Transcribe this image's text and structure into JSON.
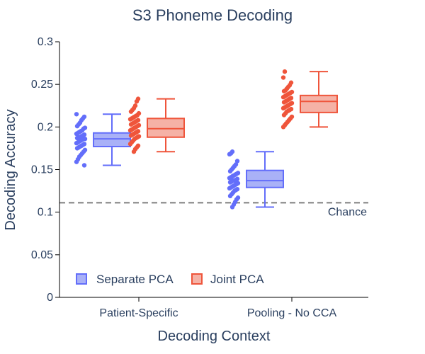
{
  "chart_data": {
    "type": "box",
    "title": "S3 Phoneme Decoding",
    "xlabel": "Decoding Context",
    "ylabel": "Decoding Accuracy",
    "ylim": [
      0,
      0.3
    ],
    "yticks": [
      0,
      0.05,
      0.1,
      0.15,
      0.2,
      0.25,
      0.3
    ],
    "ytick_labels": [
      "0",
      "0.05",
      "0.1",
      "0.15",
      "0.2",
      "0.25",
      "0.3"
    ],
    "categories": [
      "Patient-Specific",
      "Pooling - No CCA"
    ],
    "chance_level": 0.111,
    "chance_label": "Chance",
    "legend_position": "bottom-left",
    "series": [
      {
        "name": "Separate PCA",
        "fill": "#a9b1f7",
        "line": "#636efa",
        "point": "#636efa",
        "boxes": [
          {
            "category": "Patient-Specific",
            "min": 0.155,
            "q1": 0.177,
            "median": 0.186,
            "q3": 0.193,
            "max": 0.215
          },
          {
            "category": "Pooling - No CCA",
            "min": 0.106,
            "q1": 0.129,
            "median": 0.137,
            "q3": 0.149,
            "max": 0.171
          }
        ],
        "points": [
          [
            0.215,
            0.212,
            0.21,
            0.208,
            0.205,
            0.203,
            0.201,
            0.199,
            0.198,
            0.196,
            0.195,
            0.194,
            0.193,
            0.192,
            0.191,
            0.19,
            0.189,
            0.188,
            0.188,
            0.187,
            0.186,
            0.186,
            0.185,
            0.184,
            0.183,
            0.182,
            0.181,
            0.18,
            0.179,
            0.178,
            0.177,
            0.176,
            0.175,
            0.173,
            0.171,
            0.169,
            0.167,
            0.165,
            0.162,
            0.159,
            0.155
          ],
          [
            0.171,
            0.169,
            0.168,
            0.16,
            0.156,
            0.154,
            0.152,
            0.15,
            0.148,
            0.146,
            0.145,
            0.144,
            0.143,
            0.142,
            0.141,
            0.14,
            0.139,
            0.138,
            0.137,
            0.137,
            0.136,
            0.135,
            0.134,
            0.133,
            0.132,
            0.131,
            0.13,
            0.129,
            0.128,
            0.127,
            0.126,
            0.125,
            0.123,
            0.121,
            0.119,
            0.117,
            0.115,
            0.112,
            0.109,
            0.106
          ]
        ]
      },
      {
        "name": "Joint PCA",
        "fill": "#f5b2a6",
        "line": "#ef553b",
        "point": "#ef553b",
        "boxes": [
          {
            "category": "Patient-Specific",
            "min": 0.171,
            "q1": 0.188,
            "median": 0.198,
            "q3": 0.21,
            "max": 0.233
          },
          {
            "category": "Pooling - No CCA",
            "min": 0.2,
            "q1": 0.217,
            "median": 0.23,
            "q3": 0.237,
            "max": 0.265
          }
        ],
        "points": [
          [
            0.233,
            0.23,
            0.225,
            0.222,
            0.22,
            0.218,
            0.216,
            0.214,
            0.213,
            0.212,
            0.211,
            0.21,
            0.209,
            0.208,
            0.207,
            0.206,
            0.205,
            0.204,
            0.203,
            0.202,
            0.201,
            0.2,
            0.199,
            0.198,
            0.197,
            0.196,
            0.195,
            0.194,
            0.193,
            0.192,
            0.191,
            0.19,
            0.189,
            0.188,
            0.187,
            0.186,
            0.184,
            0.182,
            0.18,
            0.178,
            0.176,
            0.174,
            0.171
          ],
          [
            0.265,
            0.258,
            0.252,
            0.249,
            0.247,
            0.245,
            0.243,
            0.242,
            0.241,
            0.24,
            0.239,
            0.238,
            0.237,
            0.236,
            0.235,
            0.234,
            0.233,
            0.232,
            0.231,
            0.23,
            0.229,
            0.228,
            0.227,
            0.226,
            0.225,
            0.224,
            0.223,
            0.222,
            0.221,
            0.22,
            0.219,
            0.218,
            0.216,
            0.214,
            0.212,
            0.21,
            0.208,
            0.206,
            0.204,
            0.202,
            0.2
          ]
        ]
      }
    ]
  }
}
